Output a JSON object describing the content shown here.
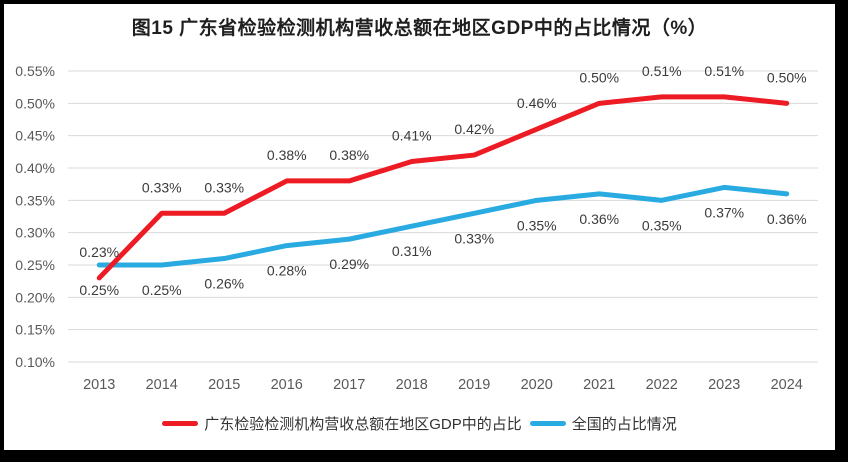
{
  "chart_data": {
    "type": "line",
    "title": "图15  广东省检验检测机构营收总额在地区GDP中的占比情况（%）",
    "categories": [
      "2013",
      "2014",
      "2015",
      "2016",
      "2017",
      "2018",
      "2019",
      "2020",
      "2021",
      "2022",
      "2023",
      "2024"
    ],
    "series": [
      {
        "name": "广东检验检测机构营收总额在地区GDP中的占比",
        "color": "#ED1C24",
        "values": [
          0.23,
          0.33,
          0.33,
          0.38,
          0.38,
          0.41,
          0.42,
          0.46,
          0.5,
          0.51,
          0.51,
          0.5
        ],
        "labels": [
          "0.23%",
          "0.33%",
          "0.33%",
          "0.38%",
          "0.38%",
          "0.41%",
          "0.42%",
          "0.46%",
          "0.50%",
          "0.51%",
          "0.51%",
          "0.50%"
        ],
        "label_position": "above"
      },
      {
        "name": "全国的占比情况",
        "color": "#29ABE2",
        "values": [
          0.25,
          0.25,
          0.26,
          0.28,
          0.29,
          0.31,
          0.33,
          0.35,
          0.36,
          0.35,
          0.37,
          0.36
        ],
        "labels": [
          "0.25%",
          "0.25%",
          "0.26%",
          "0.28%",
          "0.29%",
          "0.31%",
          "0.33%",
          "0.35%",
          "0.36%",
          "0.35%",
          "0.37%",
          "0.36%"
        ],
        "label_position": "below"
      }
    ],
    "ylim": [
      0.1,
      0.55
    ],
    "ytick_step": 0.05,
    "ytick_labels": [
      "0.55%",
      "0.50%",
      "0.45%",
      "0.40%",
      "0.35%",
      "0.30%",
      "0.25%",
      "0.20%",
      "0.15%",
      "0.10%"
    ],
    "grid": true,
    "legend_position": "bottom",
    "colors": {
      "axis_text": "#595959",
      "data_label": "#3b3b3b",
      "gridline": "#D9D9D9",
      "title_text": "#1f1f1f",
      "frame": "#000000"
    }
  }
}
